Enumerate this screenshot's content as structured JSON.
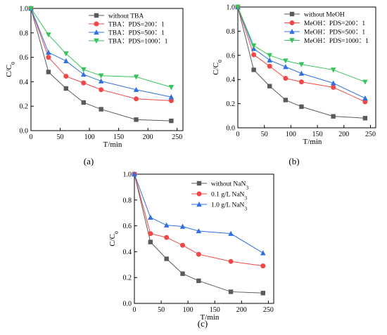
{
  "chart_data": [
    {
      "type": "line",
      "panel_label": "(a)",
      "xlabel": "T/min",
      "ylabel": "C/C0",
      "xlim": [
        0,
        260
      ],
      "ylim": [
        0,
        1.0
      ],
      "x_ticks": [
        0,
        50,
        100,
        150,
        200,
        250
      ],
      "y_ticks": [
        0.0,
        0.2,
        0.4,
        0.6,
        0.8,
        1.0
      ],
      "x_tick_labels": [
        "0",
        "50",
        "100",
        "150",
        "200",
        "250"
      ],
      "y_tick_labels": [
        "0.0",
        "0.2",
        "0.4",
        "0.6",
        "0.8",
        "1.0"
      ],
      "legend_position": "top-right",
      "series": [
        {
          "name": "without TBA",
          "color": "#5a5a5a",
          "marker": "square",
          "x": [
            0,
            30,
            60,
            90,
            120,
            180,
            240
          ],
          "y": [
            1.0,
            0.48,
            0.345,
            0.23,
            0.175,
            0.09,
            0.08
          ]
        },
        {
          "name": "TBA：PDS=200：1",
          "color": "#f04848",
          "marker": "circle",
          "x": [
            0,
            30,
            60,
            90,
            120,
            180,
            240
          ],
          "y": [
            1.0,
            0.6,
            0.445,
            0.39,
            0.335,
            0.26,
            0.245
          ]
        },
        {
          "name": "TBA：PDS=500：1",
          "color": "#2f6fe0",
          "marker": "triangle-up",
          "x": [
            0,
            30,
            60,
            90,
            120,
            180,
            240
          ],
          "y": [
            1.0,
            0.64,
            0.57,
            0.46,
            0.405,
            0.335,
            0.275
          ]
        },
        {
          "name": "TBA：PDS=1000：1",
          "color": "#36c45a",
          "marker": "triangle-down",
          "x": [
            0,
            30,
            60,
            90,
            120,
            180,
            240
          ],
          "y": [
            1.0,
            0.785,
            0.63,
            0.5,
            0.45,
            0.44,
            0.355
          ]
        }
      ]
    },
    {
      "type": "line",
      "panel_label": "(b)",
      "xlabel": "T/min",
      "ylabel": "C/C0",
      "xlim": [
        0,
        260
      ],
      "ylim": [
        0,
        1.0
      ],
      "x_ticks": [
        0,
        50,
        100,
        150,
        200,
        250
      ],
      "y_ticks": [
        0.0,
        0.2,
        0.4,
        0.6,
        0.8,
        1.0
      ],
      "x_tick_labels": [
        "0",
        "50",
        "100",
        "150",
        "200",
        "250"
      ],
      "y_tick_labels": [
        "0.0",
        "0.2",
        "0.4",
        "0.6",
        "0.8",
        "1.0"
      ],
      "legend_position": "top-right",
      "series": [
        {
          "name": "without MeOH",
          "color": "#5a5a5a",
          "marker": "square",
          "x": [
            0,
            30,
            60,
            90,
            120,
            180,
            240
          ],
          "y": [
            1.0,
            0.48,
            0.345,
            0.23,
            0.175,
            0.095,
            0.08
          ]
        },
        {
          "name": "MeOH：PDS=200：1",
          "color": "#f04848",
          "marker": "circle",
          "x": [
            0,
            30,
            60,
            90,
            120,
            180,
            240
          ],
          "y": [
            1.0,
            0.605,
            0.51,
            0.41,
            0.38,
            0.335,
            0.215
          ]
        },
        {
          "name": "MeOH：PDS=500：1",
          "color": "#2f6fe0",
          "marker": "triangle-up",
          "x": [
            0,
            30,
            60,
            90,
            120,
            180,
            240
          ],
          "y": [
            1.0,
            0.655,
            0.56,
            0.505,
            0.45,
            0.37,
            0.245
          ]
        },
        {
          "name": "MeOH：PDS=1000：1",
          "color": "#36c45a",
          "marker": "triangle-down",
          "x": [
            0,
            30,
            60,
            90,
            120,
            180,
            240
          ],
          "y": [
            1.0,
            0.68,
            0.6,
            0.555,
            0.525,
            0.48,
            0.38
          ]
        }
      ]
    },
    {
      "type": "line",
      "panel_label": "(c)",
      "xlabel": "T/min",
      "ylabel": "C/C0",
      "xlim": [
        0,
        260
      ],
      "ylim": [
        0,
        1.0
      ],
      "x_ticks": [
        0,
        50,
        100,
        150,
        200,
        250
      ],
      "y_ticks": [
        0.0,
        0.2,
        0.4,
        0.6,
        0.8,
        1.0
      ],
      "x_tick_labels": [
        "0",
        "50",
        "100",
        "150",
        "200",
        "250"
      ],
      "y_tick_labels": [
        "0.0",
        "0.2",
        "0.4",
        "0.6",
        "0.8",
        "1.0"
      ],
      "legend_position": "top-right",
      "series": [
        {
          "name": "without NaN3",
          "color": "#5a5a5a",
          "marker": "square",
          "x": [
            0,
            30,
            60,
            90,
            120,
            180,
            240
          ],
          "y": [
            1.0,
            0.475,
            0.345,
            0.23,
            0.175,
            0.09,
            0.08
          ]
        },
        {
          "name": "0.1 g/L NaN3",
          "color": "#f04848",
          "marker": "circle",
          "x": [
            0,
            30,
            60,
            90,
            120,
            180,
            240
          ],
          "y": [
            1.0,
            0.54,
            0.51,
            0.45,
            0.38,
            0.325,
            0.29
          ]
        },
        {
          "name": "1.0 g/L NaN3",
          "color": "#2f6fe0",
          "marker": "triangle-up",
          "x": [
            0,
            30,
            60,
            90,
            120,
            180,
            240
          ],
          "y": [
            1.0,
            0.665,
            0.605,
            0.595,
            0.56,
            0.54,
            0.39
          ]
        }
      ]
    }
  ]
}
